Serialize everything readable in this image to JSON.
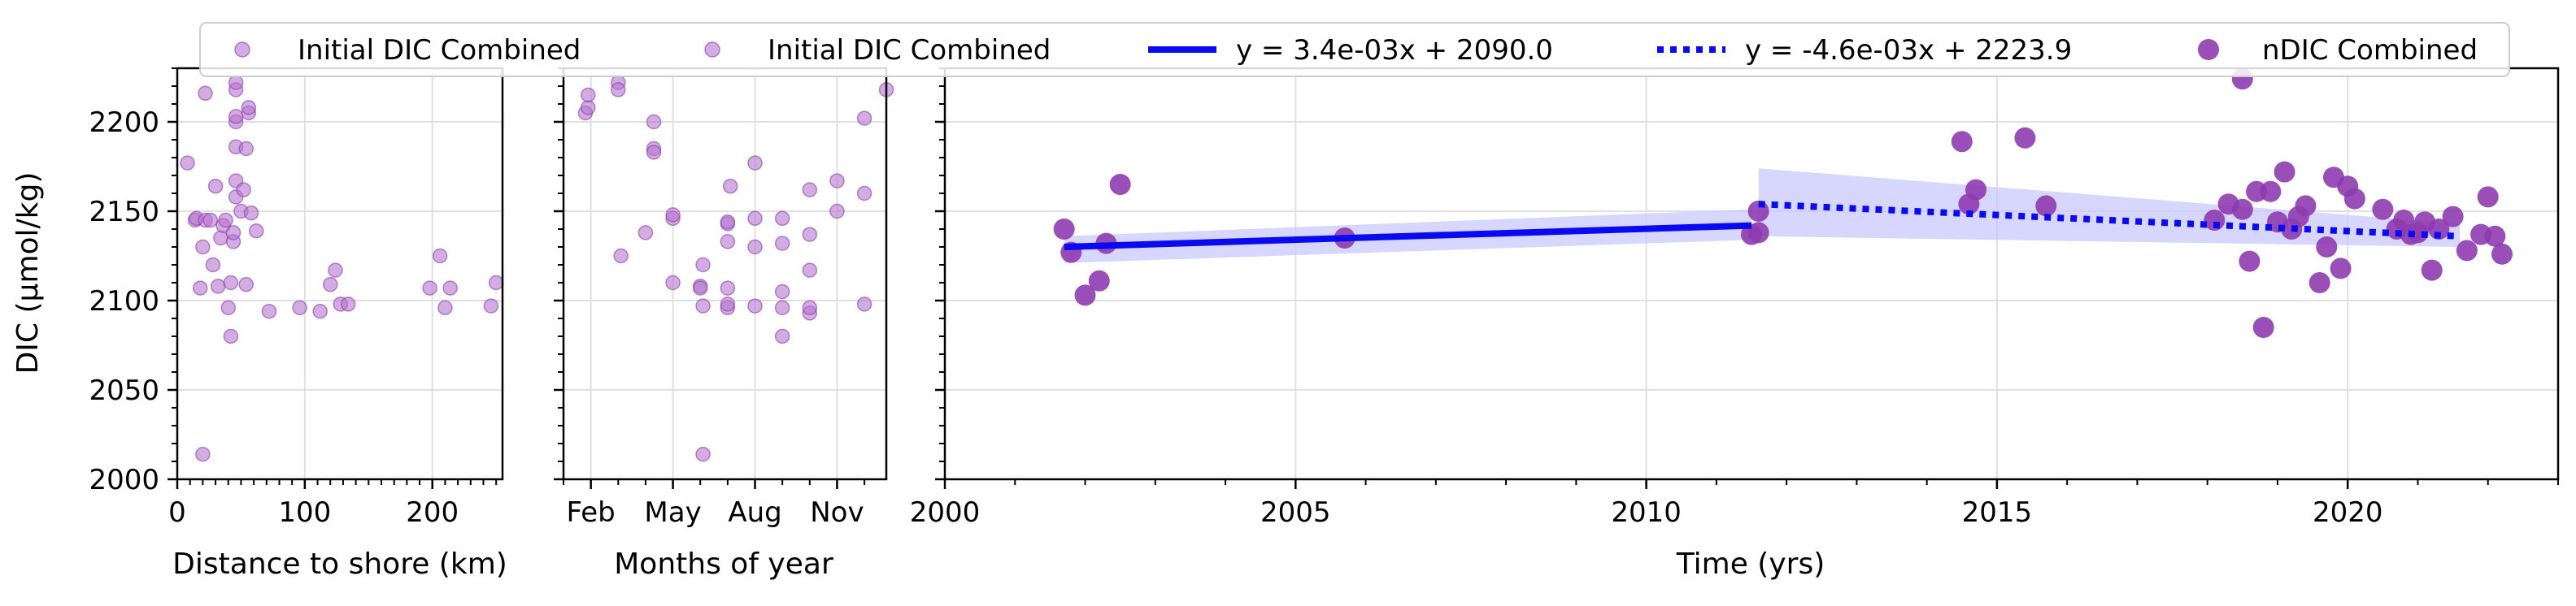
{
  "chart_data": {
    "type": "scatter",
    "y_axis": {
      "label": "DIC (µmol/kg)",
      "range": [
        2000,
        2230
      ],
      "ticks": [
        2000,
        2050,
        2100,
        2150,
        2200
      ]
    },
    "legend": {
      "placement": "top",
      "entries": [
        {
          "label": "Initial DIC Combined",
          "kind": "small-dot"
        },
        {
          "label": "Initial DIC Combined",
          "kind": "small-dot"
        },
        {
          "label": "y = 3.4e-03x + 2090.0",
          "kind": "solid-line"
        },
        {
          "label": "y = -4.6e-03x + 2223.9",
          "kind": "dotted-line"
        },
        {
          "label": "nDIC Combined",
          "kind": "big-dot"
        }
      ]
    },
    "colors": {
      "point": "#8e3bb0",
      "point_light": "#b574cf",
      "trend": "#0a0af0",
      "band": "#c8c8ff",
      "grid": "#e0e0e0"
    },
    "panels": [
      {
        "id": "distance",
        "xlabel": "Distance to shore (km)",
        "xlim": [
          0,
          255
        ],
        "xticks": [
          {
            "v": 0,
            "label": "0"
          },
          {
            "v": 100,
            "label": "100"
          },
          {
            "v": 200,
            "label": "200"
          }
        ],
        "points": [
          [
            8,
            2177
          ],
          [
            14,
            2145
          ],
          [
            15,
            2146
          ],
          [
            18,
            2107
          ],
          [
            20,
            2014
          ],
          [
            20,
            2130
          ],
          [
            22,
            2216
          ],
          [
            22,
            2145
          ],
          [
            26,
            2145
          ],
          [
            28,
            2120
          ],
          [
            30,
            2164
          ],
          [
            32,
            2108
          ],
          [
            34,
            2135
          ],
          [
            36,
            2142
          ],
          [
            38,
            2145
          ],
          [
            40,
            2096
          ],
          [
            42,
            2080
          ],
          [
            42,
            2110
          ],
          [
            44,
            2133
          ],
          [
            44,
            2138
          ],
          [
            46,
            2158
          ],
          [
            46,
            2167
          ],
          [
            46,
            2186
          ],
          [
            46,
            2200
          ],
          [
            46,
            2203
          ],
          [
            46,
            2218
          ],
          [
            46,
            2222
          ],
          [
            50,
            2150
          ],
          [
            52,
            2162
          ],
          [
            54,
            2109
          ],
          [
            54,
            2185
          ],
          [
            56,
            2205
          ],
          [
            56,
            2208
          ],
          [
            58,
            2149
          ],
          [
            62,
            2139
          ],
          [
            72,
            2094
          ],
          [
            96,
            2096
          ],
          [
            112,
            2094
          ],
          [
            120,
            2109
          ],
          [
            124,
            2117
          ],
          [
            128,
            2098
          ],
          [
            134,
            2098
          ],
          [
            198,
            2107
          ],
          [
            206,
            2125
          ],
          [
            210,
            2096
          ],
          [
            214,
            2107
          ],
          [
            246,
            2097
          ],
          [
            250,
            2110
          ]
        ]
      },
      {
        "id": "month",
        "xlabel": "Months of year",
        "xlim": [
          1.0,
          12.8
        ],
        "xticks": [
          {
            "v": 2,
            "label": "Feb"
          },
          {
            "v": 5,
            "label": "May"
          },
          {
            "v": 8,
            "label": "Aug"
          },
          {
            "v": 11,
            "label": "Nov"
          }
        ],
        "points": [
          [
            1.8,
            2205
          ],
          [
            1.9,
            2208
          ],
          [
            1.9,
            2215
          ],
          [
            3.0,
            2222
          ],
          [
            3.0,
            2218
          ],
          [
            3.1,
            2125
          ],
          [
            4.0,
            2138
          ],
          [
            4.3,
            2200
          ],
          [
            4.3,
            2185
          ],
          [
            4.3,
            2183
          ],
          [
            5.0,
            2110
          ],
          [
            5.0,
            2146
          ],
          [
            5.0,
            2148
          ],
          [
            6.0,
            2108
          ],
          [
            6.0,
            2107
          ],
          [
            6.1,
            2097
          ],
          [
            6.1,
            2120
          ],
          [
            6.1,
            2014
          ],
          [
            7.0,
            2096
          ],
          [
            7.0,
            2098
          ],
          [
            7.0,
            2107
          ],
          [
            7.0,
            2133
          ],
          [
            7.0,
            2143
          ],
          [
            7.0,
            2144
          ],
          [
            7.1,
            2164
          ],
          [
            8.0,
            2097
          ],
          [
            8.0,
            2146
          ],
          [
            8.0,
            2130
          ],
          [
            8.0,
            2177
          ],
          [
            9.0,
            2080
          ],
          [
            9.0,
            2096
          ],
          [
            9.0,
            2105
          ],
          [
            9.0,
            2132
          ],
          [
            9.0,
            2146
          ],
          [
            10.0,
            2093
          ],
          [
            10.0,
            2096
          ],
          [
            10.0,
            2117
          ],
          [
            10.0,
            2137
          ],
          [
            10.0,
            2162
          ],
          [
            11.0,
            2150
          ],
          [
            11.0,
            2167
          ],
          [
            12.0,
            2098
          ],
          [
            12.0,
            2160
          ],
          [
            12.0,
            2202
          ],
          [
            12.8,
            2218
          ]
        ]
      },
      {
        "id": "time",
        "xlabel": "Time (yrs)",
        "xlim": [
          2000,
          2023
        ],
        "xticks": [
          {
            "v": 2000,
            "label": "2000"
          },
          {
            "v": 2005,
            "label": "2005"
          },
          {
            "v": 2010,
            "label": "2010"
          },
          {
            "v": 2015,
            "label": "2015"
          },
          {
            "v": 2020,
            "label": "2020"
          }
        ],
        "points": [
          [
            2001.7,
            2140
          ],
          [
            2001.8,
            2127
          ],
          [
            2002.0,
            2103
          ],
          [
            2002.2,
            2111
          ],
          [
            2002.3,
            2132
          ],
          [
            2002.5,
            2165
          ],
          [
            2005.7,
            2135
          ],
          [
            2011.5,
            2137
          ],
          [
            2011.6,
            2138
          ],
          [
            2011.6,
            2150
          ],
          [
            2014.5,
            2189
          ],
          [
            2014.6,
            2154
          ],
          [
            2014.7,
            2162
          ],
          [
            2015.4,
            2191
          ],
          [
            2015.7,
            2153
          ],
          [
            2018.1,
            2145
          ],
          [
            2018.3,
            2154
          ],
          [
            2018.5,
            2224
          ],
          [
            2018.5,
            2151
          ],
          [
            2018.6,
            2122
          ],
          [
            2018.7,
            2161
          ],
          [
            2018.8,
            2085
          ],
          [
            2018.9,
            2161
          ],
          [
            2019.0,
            2144
          ],
          [
            2019.1,
            2172
          ],
          [
            2019.2,
            2140
          ],
          [
            2019.3,
            2147
          ],
          [
            2019.4,
            2153
          ],
          [
            2019.6,
            2110
          ],
          [
            2019.7,
            2130
          ],
          [
            2019.8,
            2169
          ],
          [
            2019.9,
            2118
          ],
          [
            2020.0,
            2164
          ],
          [
            2020.1,
            2157
          ],
          [
            2020.5,
            2151
          ],
          [
            2020.7,
            2140
          ],
          [
            2020.8,
            2145
          ],
          [
            2020.9,
            2137
          ],
          [
            2021.0,
            2138
          ],
          [
            2021.1,
            2144
          ],
          [
            2021.2,
            2117
          ],
          [
            2021.3,
            2140
          ],
          [
            2021.5,
            2147
          ],
          [
            2021.7,
            2128
          ],
          [
            2021.9,
            2137
          ],
          [
            2022.0,
            2158
          ],
          [
            2022.1,
            2136
          ],
          [
            2022.2,
            2126
          ]
        ],
        "trend_lines": [
          {
            "label": "y = 3.4e-03x + 2090.0",
            "style": "solid",
            "x": [
              2001.7,
              2011.5
            ],
            "y": [
              2130,
              2142
            ],
            "ci_upper": [
              2136,
              2151
            ],
            "ci_lower": [
              2121,
              2134
            ]
          },
          {
            "label": "y = -4.6e-03x + 2223.9",
            "style": "dotted",
            "x": [
              2011.6,
              2021.6
            ],
            "y": [
              2154,
              2136
            ],
            "ci_upper": [
              2174,
              2143
            ],
            "ci_lower": [
              2136,
              2130
            ]
          }
        ]
      }
    ]
  }
}
